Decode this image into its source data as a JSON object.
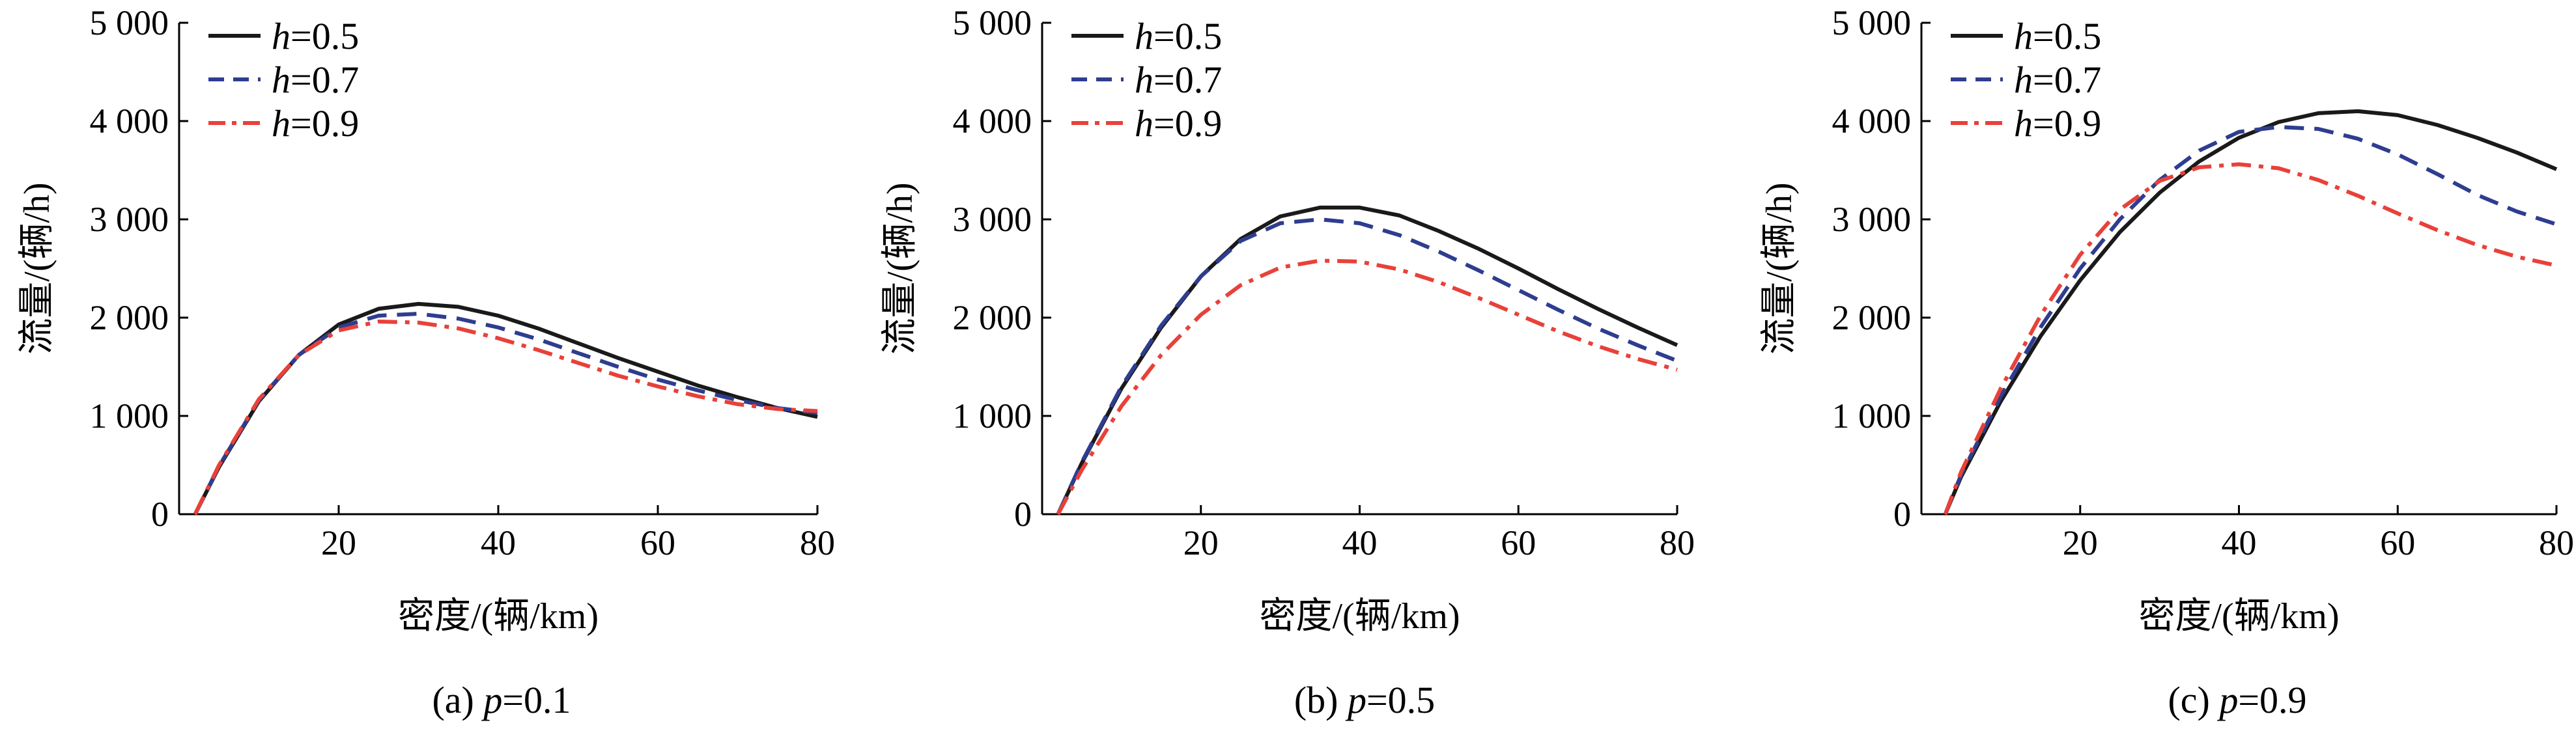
{
  "chart_data": [
    {
      "type": "line",
      "caption_prefix": "(a) ",
      "caption_var": "p",
      "caption_value": "=0.1",
      "xlabel": "密度/(辆/km)",
      "ylabel": "流量/(辆/h)",
      "xlim": [
        0,
        80
      ],
      "ylim": [
        0,
        5000
      ],
      "xticks": [
        20,
        40,
        60,
        80
      ],
      "xtick_labels": [
        "20",
        "40",
        "60",
        "80"
      ],
      "yticks": [
        0,
        1000,
        2000,
        3000,
        4000,
        5000
      ],
      "ytick_labels": [
        "0",
        "1 000",
        "2 000",
        "3 000",
        "4 000",
        "5 000"
      ],
      "grid": false,
      "legend_position": "top-left",
      "series": [
        {
          "var": "h",
          "name": "=0.5",
          "color": "#1a1a1a",
          "dash": "solid",
          "x": [
            2,
            5,
            10,
            15,
            20,
            25,
            30,
            35,
            40,
            45,
            50,
            55,
            60,
            65,
            70,
            75,
            80
          ],
          "y": [
            0,
            480,
            1150,
            1620,
            1930,
            2090,
            2140,
            2110,
            2020,
            1890,
            1740,
            1590,
            1450,
            1310,
            1190,
            1080,
            990
          ]
        },
        {
          "var": "h",
          "name": "=0.7",
          "color": "#2e3d8f",
          "dash": "dashed",
          "x": [
            2,
            5,
            10,
            15,
            20,
            25,
            30,
            35,
            40,
            45,
            50,
            55,
            60,
            65,
            70,
            75,
            80
          ],
          "y": [
            0,
            490,
            1160,
            1620,
            1900,
            2020,
            2040,
            1990,
            1900,
            1780,
            1640,
            1500,
            1370,
            1260,
            1160,
            1080,
            1030
          ]
        },
        {
          "var": "h",
          "name": "=0.9",
          "color": "#e8413a",
          "dash": "dashdot",
          "x": [
            2,
            5,
            10,
            15,
            20,
            25,
            30,
            35,
            40,
            45,
            50,
            55,
            60,
            65,
            70,
            75,
            80
          ],
          "y": [
            0,
            500,
            1170,
            1620,
            1870,
            1960,
            1950,
            1890,
            1790,
            1670,
            1540,
            1410,
            1300,
            1200,
            1120,
            1070,
            1050
          ]
        }
      ]
    },
    {
      "type": "line",
      "caption_prefix": "(b) ",
      "caption_var": "p",
      "caption_value": "=0.5",
      "xlabel": "密度/(辆/km)",
      "ylabel": "流量/(辆/h)",
      "xlim": [
        0,
        80
      ],
      "ylim": [
        0,
        5000
      ],
      "xticks": [
        20,
        40,
        60,
        80
      ],
      "xtick_labels": [
        "20",
        "40",
        "60",
        "80"
      ],
      "yticks": [
        0,
        1000,
        2000,
        3000,
        4000,
        5000
      ],
      "ytick_labels": [
        "0",
        "1 000",
        "2 000",
        "3 000",
        "4 000",
        "5 000"
      ],
      "grid": false,
      "legend_position": "top-left",
      "series": [
        {
          "var": "h",
          "name": "=0.5",
          "color": "#1a1a1a",
          "dash": "solid",
          "x": [
            2,
            5,
            10,
            15,
            20,
            25,
            30,
            35,
            40,
            45,
            50,
            55,
            60,
            65,
            70,
            75,
            80
          ],
          "y": [
            0,
            520,
            1280,
            1900,
            2420,
            2800,
            3030,
            3120,
            3120,
            3040,
            2880,
            2700,
            2500,
            2290,
            2090,
            1900,
            1720
          ]
        },
        {
          "var": "h",
          "name": "=0.7",
          "color": "#2e3d8f",
          "dash": "dashed",
          "x": [
            2,
            5,
            10,
            15,
            20,
            25,
            30,
            35,
            40,
            45,
            50,
            55,
            60,
            65,
            70,
            75,
            80
          ],
          "y": [
            0,
            530,
            1300,
            1920,
            2420,
            2780,
            2960,
            3000,
            2960,
            2840,
            2670,
            2480,
            2280,
            2080,
            1890,
            1720,
            1560
          ]
        },
        {
          "var": "h",
          "name": "=0.9",
          "color": "#e8413a",
          "dash": "dashdot",
          "x": [
            2,
            5,
            10,
            15,
            20,
            25,
            30,
            35,
            40,
            45,
            50,
            55,
            60,
            65,
            70,
            75,
            80
          ],
          "y": [
            0,
            450,
            1100,
            1620,
            2030,
            2330,
            2510,
            2580,
            2570,
            2490,
            2360,
            2200,
            2030,
            1860,
            1710,
            1580,
            1470
          ]
        }
      ]
    },
    {
      "type": "line",
      "caption_prefix": "(c) ",
      "caption_var": "p",
      "caption_value": "=0.9",
      "xlabel": "密度/(辆/km)",
      "ylabel": "流量/(辆/h)",
      "xlim": [
        0,
        80
      ],
      "ylim": [
        0,
        5000
      ],
      "xticks": [
        20,
        40,
        60,
        80
      ],
      "xtick_labels": [
        "20",
        "40",
        "60",
        "80"
      ],
      "yticks": [
        0,
        1000,
        2000,
        3000,
        4000,
        5000
      ],
      "ytick_labels": [
        "0",
        "1 000",
        "2 000",
        "3 000",
        "4 000",
        "5 000"
      ],
      "grid": false,
      "legend_position": "top-left",
      "series": [
        {
          "var": "h",
          "name": "=0.5",
          "color": "#1a1a1a",
          "dash": "solid",
          "x": [
            3,
            5,
            10,
            15,
            20,
            25,
            30,
            35,
            40,
            45,
            50,
            55,
            60,
            65,
            70,
            75,
            80
          ],
          "y": [
            0,
            380,
            1150,
            1810,
            2380,
            2870,
            3270,
            3590,
            3830,
            3990,
            4080,
            4100,
            4060,
            3960,
            3830,
            3680,
            3510
          ]
        },
        {
          "var": "h",
          "name": "=0.7",
          "color": "#2e3d8f",
          "dash": "dashed",
          "x": [
            3,
            5,
            10,
            15,
            20,
            25,
            30,
            35,
            40,
            45,
            50,
            55,
            60,
            65,
            70,
            75,
            80
          ],
          "y": [
            0,
            400,
            1200,
            1900,
            2500,
            3000,
            3400,
            3700,
            3890,
            3940,
            3920,
            3820,
            3660,
            3460,
            3250,
            3080,
            2950
          ]
        },
        {
          "var": "h",
          "name": "=0.9",
          "color": "#e8413a",
          "dash": "dashdot",
          "x": [
            3,
            5,
            10,
            15,
            20,
            25,
            30,
            35,
            40,
            45,
            50,
            55,
            60,
            65,
            70,
            75,
            80
          ],
          "y": [
            0,
            430,
            1280,
            2020,
            2640,
            3100,
            3390,
            3530,
            3560,
            3520,
            3400,
            3240,
            3060,
            2890,
            2740,
            2620,
            2530
          ]
        }
      ]
    }
  ]
}
